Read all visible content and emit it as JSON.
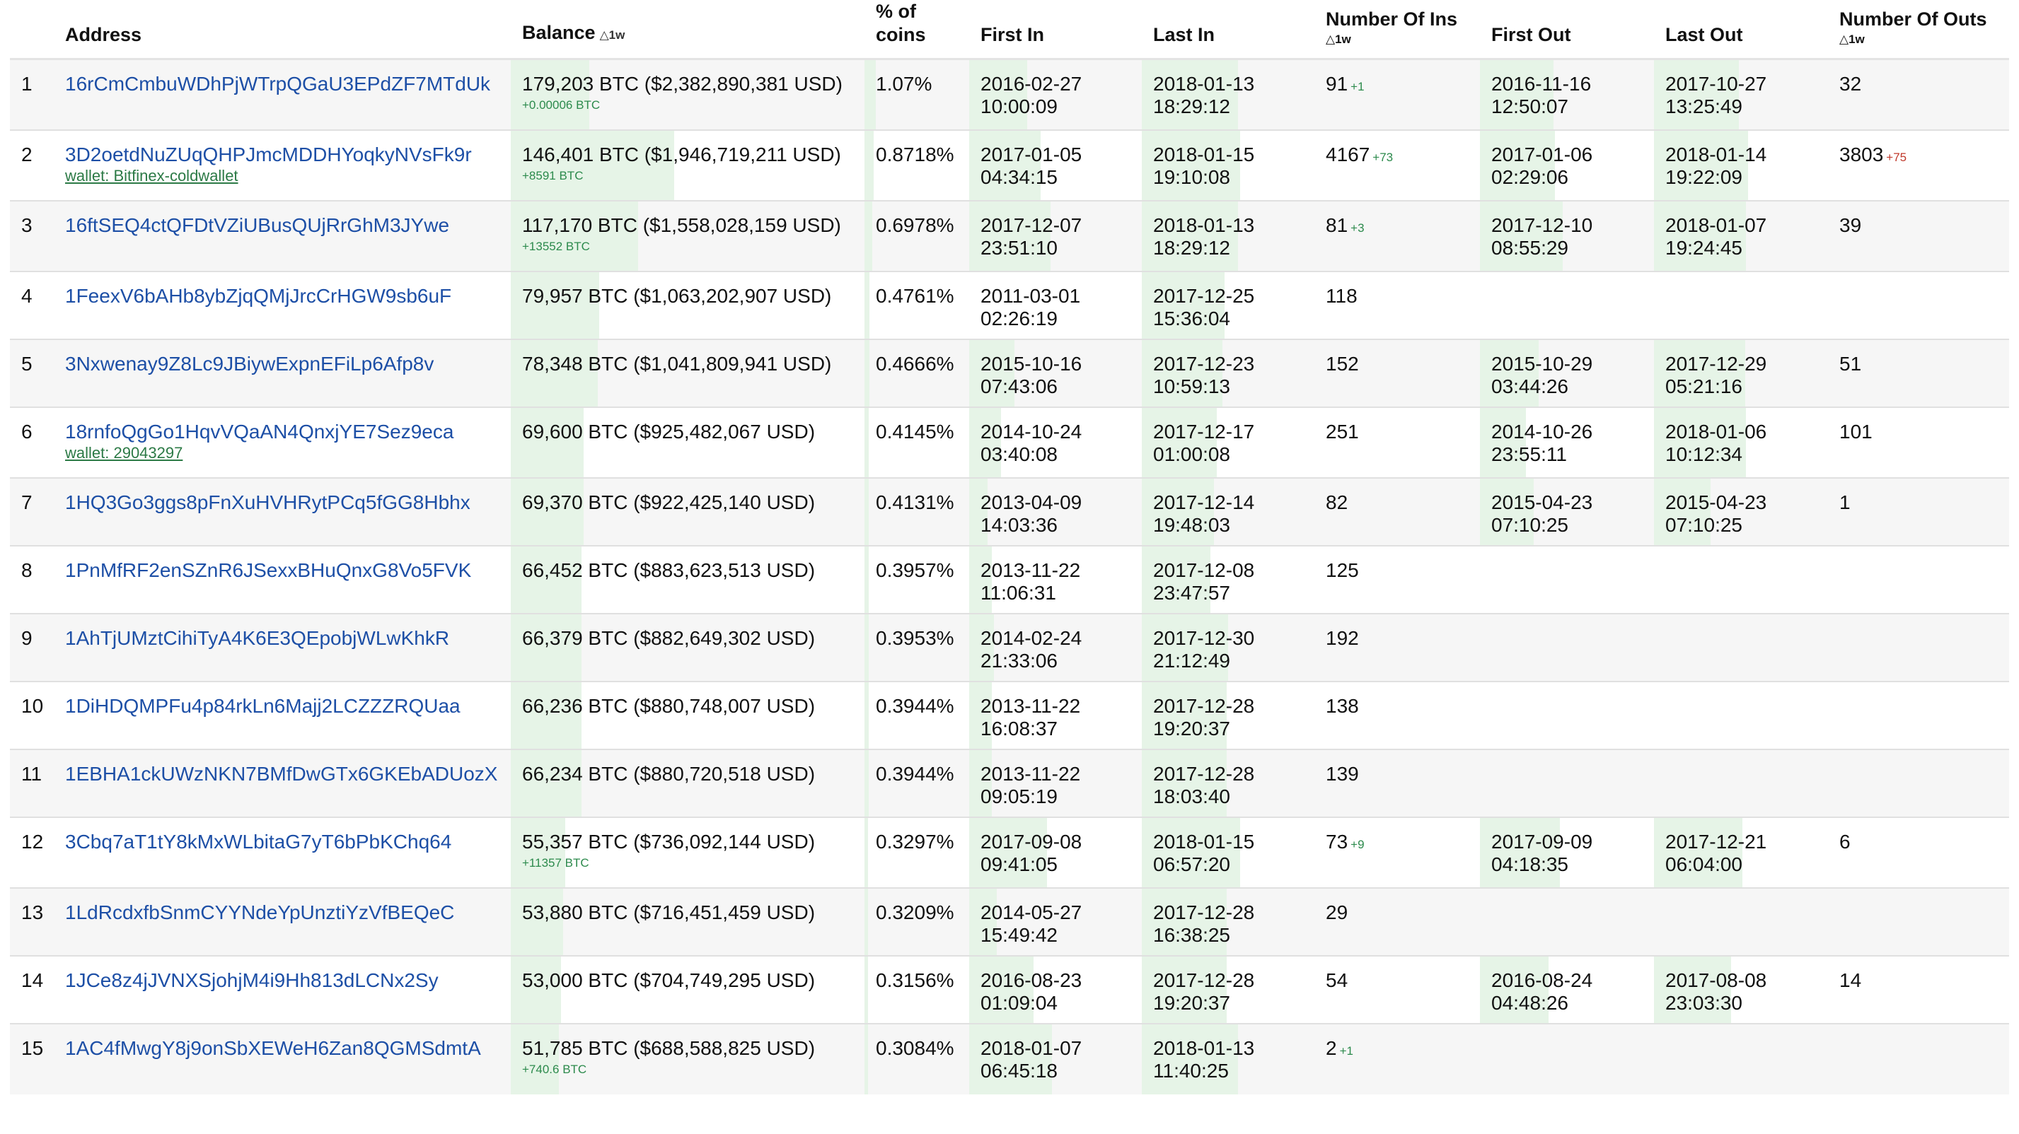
{
  "headers": {
    "rank": "",
    "address": "Address",
    "balance": "Balance",
    "balance_delta": "△1w",
    "pct": "% of coins",
    "first_in": "First In",
    "last_in": "Last In",
    "num_ins": "Number Of Ins",
    "num_ins_delta": "△1w",
    "first_out": "First Out",
    "last_out": "Last Out",
    "num_outs": "Number Of Outs",
    "num_outs_delta": "△1w"
  },
  "rows": [
    {
      "rank": "1",
      "address": "16rCmCmbuWDhPjWTrpQGaU3EPdZF7MTdUk",
      "wallet": "",
      "balance": "179,203 BTC ($2,382,890,381 USD)",
      "balance_delta": "+0.00006 BTC",
      "balance_bar": 0.39,
      "pct": "1.07%",
      "pct_bar": 1.0,
      "first_in": "2016-02-27",
      "first_in_time": "10:00:09",
      "first_in_bar": 0.7,
      "last_in": "2018-01-13",
      "last_in_time": "18:29:12",
      "last_in_bar": 0.98,
      "num_ins": "91",
      "num_ins_delta": "+1",
      "first_out": "2016-11-16",
      "first_out_time": "12:50:07",
      "first_out_bar": 0.88,
      "last_out": "2017-10-27",
      "last_out_time": "13:25:49",
      "last_out_bar": 0.9,
      "num_outs": "32",
      "num_outs_delta": ""
    },
    {
      "rank": "2",
      "address": "3D2oetdNuZUqQHPJmcMDDHYoqkyNVsFk9r",
      "wallet": "wallet: Bitfinex-coldwallet",
      "balance": "146,401 BTC ($1,946,719,211 USD)",
      "balance_delta": "+8591 BTC",
      "balance_bar": 0.81,
      "pct": "0.8718%",
      "pct_bar": 0.81,
      "first_in": "2017-01-05",
      "first_in_time": "04:34:15",
      "first_in_bar": 0.86,
      "last_in": "2018-01-15",
      "last_in_time": "19:10:08",
      "last_in_bar": 1.0,
      "num_ins": "4167",
      "num_ins_delta": "+73",
      "first_out": "2017-01-06",
      "first_out_time": "02:29:06",
      "first_out_bar": 0.9,
      "last_out": "2018-01-14",
      "last_out_time": "19:22:09",
      "last_out_bar": 1.0,
      "num_outs": "3803",
      "num_outs_delta": "+75"
    },
    {
      "rank": "3",
      "address": "16ftSEQ4ctQFDtVZiUBusQUjRrGhM3JYwe",
      "wallet": "",
      "balance": "117,170 BTC ($1,558,028,159 USD)",
      "balance_delta": "+13552 BTC",
      "balance_bar": 0.63,
      "pct": "0.6978%",
      "pct_bar": 0.65,
      "first_in": "2017-12-07",
      "first_in_time": "23:51:10",
      "first_in_bar": 0.98,
      "last_in": "2018-01-13",
      "last_in_time": "18:29:12",
      "last_in_bar": 0.98,
      "num_ins": "81",
      "num_ins_delta": "+3",
      "first_out": "2017-12-10",
      "first_out_time": "08:55:29",
      "first_out_bar": 0.99,
      "last_out": "2018-01-07",
      "last_out_time": "19:24:45",
      "last_out_bar": 0.98,
      "num_outs": "39",
      "num_outs_delta": ""
    },
    {
      "rank": "4",
      "address": "1FeexV6bAHb8ybZjqQMjJrcCrHGW9sb6uF",
      "wallet": "",
      "balance": "79,957 BTC ($1,063,202,907 USD)",
      "balance_delta": "",
      "balance_bar": 0.44,
      "pct": "0.4761%",
      "pct_bar": 0.44,
      "first_in": "2011-03-01",
      "first_in_time": "02:26:19",
      "first_in_bar": 0.0,
      "last_in": "2017-12-25",
      "last_in_time": "15:36:04",
      "last_in_bar": 0.84,
      "num_ins": "118",
      "num_ins_delta": "",
      "first_out": "",
      "first_out_time": "",
      "first_out_bar": 0,
      "last_out": "",
      "last_out_time": "",
      "last_out_bar": 0,
      "num_outs": "",
      "num_outs_delta": ""
    },
    {
      "rank": "5",
      "address": "3Nxwenay9Z8Lc9JBiywExpnEFiLp6Afp8v",
      "wallet": "",
      "balance": "78,348 BTC ($1,041,809,941 USD)",
      "balance_delta": "",
      "balance_bar": 0.43,
      "pct": "0.4666%",
      "pct_bar": 0.43,
      "first_in": "2015-10-16",
      "first_in_time": "07:43:06",
      "first_in_bar": 0.55,
      "last_in": "2017-12-23",
      "last_in_time": "10:59:13",
      "last_in_bar": 0.82,
      "num_ins": "152",
      "num_ins_delta": "",
      "first_out": "2015-10-29",
      "first_out_time": "03:44:26",
      "first_out_bar": 0.7,
      "last_out": "2017-12-29",
      "last_out_time": "05:21:16",
      "last_out_bar": 0.97,
      "num_outs": "51",
      "num_outs_delta": ""
    },
    {
      "rank": "6",
      "address": "18rnfoQgGo1HqvVQaAN4QnxjYE7Sez9eca",
      "wallet": "wallet: 29043297",
      "balance": "69,600 BTC ($925,482,067 USD)",
      "balance_delta": "",
      "balance_bar": 0.36,
      "pct": "0.4145%",
      "pct_bar": 0.38,
      "first_in": "2014-10-24",
      "first_in_time": "03:40:08",
      "first_in_bar": 0.38,
      "last_in": "2017-12-17",
      "last_in_time": "01:00:08",
      "last_in_bar": 0.76,
      "num_ins": "251",
      "num_ins_delta": "",
      "first_out": "2014-10-26",
      "first_out_time": "23:55:11",
      "first_out_bar": 0.55,
      "last_out": "2018-01-06",
      "last_out_time": "10:12:34",
      "last_out_bar": 0.98,
      "num_outs": "101",
      "num_outs_delta": ""
    },
    {
      "rank": "7",
      "address": "1HQ3Go3ggs8pFnXuHVHRytPCq5fGG8Hbhx",
      "wallet": "",
      "balance": "69,370 BTC ($922,425,140 USD)",
      "balance_delta": "",
      "balance_bar": 0.36,
      "pct": "0.4131%",
      "pct_bar": 0.38,
      "first_in": "2013-04-09",
      "first_in_time": "14:03:36",
      "first_in_bar": 0.22,
      "last_in": "2017-12-14",
      "last_in_time": "19:48:03",
      "last_in_bar": 0.73,
      "num_ins": "82",
      "num_ins_delta": "",
      "first_out": "2015-04-23",
      "first_out_time": "07:10:25",
      "first_out_bar": 0.64,
      "last_out": "2015-04-23",
      "last_out_time": "07:10:25",
      "last_out_bar": 0.6,
      "num_outs": "1",
      "num_outs_delta": ""
    },
    {
      "rank": "8",
      "address": "1PnMfRF2enSZnR6JSexxBHuQnxG8Vo5FVK",
      "wallet": "",
      "balance": "66,452 BTC ($883,623,513 USD)",
      "balance_delta": "",
      "balance_bar": 0.35,
      "pct": "0.3957%",
      "pct_bar": 0.36,
      "first_in": "2013-11-22",
      "first_in_time": "11:06:31",
      "first_in_bar": 0.27,
      "last_in": "2017-12-08",
      "last_in_time": "23:47:57",
      "last_in_bar": 0.7,
      "num_ins": "125",
      "num_ins_delta": "",
      "first_out": "",
      "first_out_time": "",
      "first_out_bar": 0,
      "last_out": "",
      "last_out_time": "",
      "last_out_bar": 0,
      "num_outs": "",
      "num_outs_delta": ""
    },
    {
      "rank": "9",
      "address": "1AhTjUMztCihiTyA4K6E3QEpobjWLwKhkR",
      "wallet": "",
      "balance": "66,379 BTC ($882,649,302 USD)",
      "balance_delta": "",
      "balance_bar": 0.35,
      "pct": "0.3953%",
      "pct_bar": 0.36,
      "first_in": "2014-02-24",
      "first_in_time": "21:33:06",
      "first_in_bar": 0.3,
      "last_in": "2017-12-30",
      "last_in_time": "21:12:49",
      "last_in_bar": 0.88,
      "num_ins": "192",
      "num_ins_delta": "",
      "first_out": "",
      "first_out_time": "",
      "first_out_bar": 0,
      "last_out": "",
      "last_out_time": "",
      "last_out_bar": 0,
      "num_outs": "",
      "num_outs_delta": ""
    },
    {
      "rank": "10",
      "address": "1DiHDQMPFu4p84rkLn6Majj2LCZZZRQUaa",
      "wallet": "",
      "balance": "66,236 BTC ($880,748,007 USD)",
      "balance_delta": "",
      "balance_bar": 0.35,
      "pct": "0.3944%",
      "pct_bar": 0.36,
      "first_in": "2013-11-22",
      "first_in_time": "16:08:37",
      "first_in_bar": 0.27,
      "last_in": "2017-12-28",
      "last_in_time": "19:20:37",
      "last_in_bar": 0.86,
      "num_ins": "138",
      "num_ins_delta": "",
      "first_out": "",
      "first_out_time": "",
      "first_out_bar": 0,
      "last_out": "",
      "last_out_time": "",
      "last_out_bar": 0,
      "num_outs": "",
      "num_outs_delta": ""
    },
    {
      "rank": "11",
      "address": "1EBHA1ckUWzNKN7BMfDwGTx6GKEbADUozX",
      "wallet": "",
      "balance": "66,234 BTC ($880,720,518 USD)",
      "balance_delta": "",
      "balance_bar": 0.35,
      "pct": "0.3944%",
      "pct_bar": 0.36,
      "first_in": "2013-11-22",
      "first_in_time": "09:05:19",
      "first_in_bar": 0.27,
      "last_in": "2017-12-28",
      "last_in_time": "18:03:40",
      "last_in_bar": 0.86,
      "num_ins": "139",
      "num_ins_delta": "",
      "first_out": "",
      "first_out_time": "",
      "first_out_bar": 0,
      "last_out": "",
      "last_out_time": "",
      "last_out_bar": 0,
      "num_outs": "",
      "num_outs_delta": ""
    },
    {
      "rank": "12",
      "address": "3Cbq7aT1tY8kMxWLbitaG7yT6bPbKChq64",
      "wallet": "",
      "balance": "55,357 BTC ($736,092,144 USD)",
      "balance_delta": "+11357 BTC",
      "balance_bar": 0.27,
      "pct": "0.3297%",
      "pct_bar": 0.3,
      "first_in": "2017-09-08",
      "first_in_time": "09:41:05",
      "first_in_bar": 0.94,
      "last_in": "2018-01-15",
      "last_in_time": "06:57:20",
      "last_in_bar": 1.0,
      "num_ins": "73",
      "num_ins_delta": "+9",
      "first_out": "2017-09-09",
      "first_out_time": "04:18:35",
      "first_out_bar": 0.96,
      "last_out": "2017-12-21",
      "last_out_time": "06:04:00",
      "last_out_bar": 0.94,
      "num_outs": "6",
      "num_outs_delta": ""
    },
    {
      "rank": "13",
      "address": "1LdRcdxfbSnmCYYNdeYpUnztiYzVfBEQeC",
      "wallet": "",
      "balance": "53,880 BTC ($716,451,459 USD)",
      "balance_delta": "",
      "balance_bar": 0.26,
      "pct": "0.3209%",
      "pct_bar": 0.29,
      "first_in": "2014-05-27",
      "first_in_time": "15:49:42",
      "first_in_bar": 0.33,
      "last_in": "2017-12-28",
      "last_in_time": "16:38:25",
      "last_in_bar": 0.86,
      "num_ins": "29",
      "num_ins_delta": "",
      "first_out": "",
      "first_out_time": "",
      "first_out_bar": 0,
      "last_out": "",
      "last_out_time": "",
      "last_out_bar": 0,
      "num_outs": "",
      "num_outs_delta": ""
    },
    {
      "rank": "14",
      "address": "1JCe8z4jJVNXSjohjM4i9Hh813dLCNx2Sy",
      "wallet": "",
      "balance": "53,000 BTC ($704,749,295 USD)",
      "balance_delta": "",
      "balance_bar": 0.25,
      "pct": "0.3156%",
      "pct_bar": 0.29,
      "first_in": "2016-08-23",
      "first_in_time": "01:09:04",
      "first_in_bar": 0.78,
      "last_in": "2017-12-28",
      "last_in_time": "19:20:37",
      "last_in_bar": 0.86,
      "num_ins": "54",
      "num_ins_delta": "",
      "first_out": "2016-08-24",
      "first_out_time": "04:48:26",
      "first_out_bar": 0.82,
      "last_out": "2017-08-08",
      "last_out_time": "23:03:30",
      "last_out_bar": 0.82,
      "num_outs": "14",
      "num_outs_delta": ""
    },
    {
      "rank": "15",
      "address": "1AC4fMwgY8j9onSbXEWeH6Zan8QGMSdmtA",
      "wallet": "",
      "balance": "51,785 BTC ($688,588,825 USD)",
      "balance_delta": "+740.6 BTC",
      "balance_bar": 0.24,
      "pct": "0.3084%",
      "pct_bar": 0.28,
      "first_in": "2018-01-07",
      "first_in_time": "06:45:18",
      "first_in_bar": 1.0,
      "last_in": "2018-01-13",
      "last_in_time": "11:40:25",
      "last_in_bar": 0.98,
      "num_ins": "2",
      "num_ins_delta": "+1",
      "first_out": "",
      "first_out_time": "",
      "first_out_bar": 0,
      "last_out": "",
      "last_out_time": "",
      "last_out_bar": 0,
      "num_outs": "",
      "num_outs_delta": ""
    }
  ],
  "colors": {
    "link": "#1d4fa6",
    "wallet": "#2c7a46",
    "positive": "#2c8a4c",
    "negative": "#c0392b",
    "bar": "#e6f4e7"
  }
}
